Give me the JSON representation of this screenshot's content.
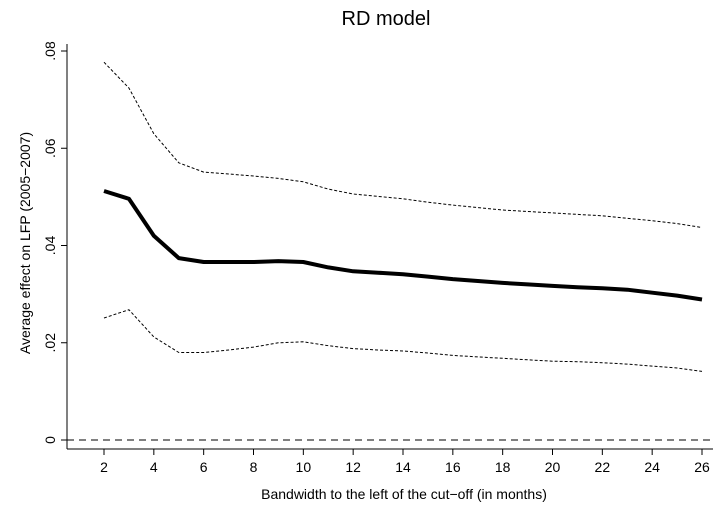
{
  "chart_data": {
    "type": "line",
    "title": "RD model",
    "xlabel": "Bandwidth to the left of the cut−off (in months)",
    "ylabel": "Average effect on LFP (2005−2007)",
    "xlim": [
      2,
      26
    ],
    "ylim": [
      0,
      0.08
    ],
    "x_ticks": [
      "2",
      "4",
      "6",
      "8",
      "10",
      "12",
      "14",
      "16",
      "18",
      "20",
      "22",
      "24",
      "26"
    ],
    "y_ticks": [
      "0",
      ".02",
      ".04",
      ".06",
      ".08"
    ],
    "grid": false,
    "legend": "none",
    "reference_line": {
      "y": 0,
      "style": "dashed"
    },
    "x": [
      2,
      3,
      4,
      5,
      6,
      7,
      8,
      9,
      10,
      11,
      12,
      13,
      14,
      15,
      16,
      17,
      18,
      19,
      20,
      21,
      22,
      23,
      24,
      25,
      26
    ],
    "series": [
      {
        "role": "estimate",
        "style": "solid-thick",
        "color": "#000000",
        "values": [
          0.0512,
          0.0496,
          0.042,
          0.0374,
          0.0366,
          0.0366,
          0.0366,
          0.0368,
          0.0366,
          0.0355,
          0.0347,
          0.0344,
          0.0341,
          0.0336,
          0.0331,
          0.0327,
          0.0323,
          0.032,
          0.0317,
          0.0314,
          0.0312,
          0.0309,
          0.0303,
          0.0297,
          0.0289
        ]
      },
      {
        "role": "upper-ci",
        "style": "dashed-thin",
        "color": "#000000",
        "values": [
          0.0777,
          0.0724,
          0.063,
          0.057,
          0.0551,
          0.0547,
          0.0543,
          0.0538,
          0.0531,
          0.0516,
          0.0506,
          0.0501,
          0.0496,
          0.0489,
          0.0483,
          0.0478,
          0.0473,
          0.047,
          0.0467,
          0.0464,
          0.0461,
          0.0456,
          0.0451,
          0.0445,
          0.0437
        ]
      },
      {
        "role": "lower-ci",
        "style": "dashed-thin",
        "color": "#000000",
        "values": [
          0.0251,
          0.0268,
          0.0212,
          0.018,
          0.018,
          0.0185,
          0.0191,
          0.02,
          0.0202,
          0.0194,
          0.0188,
          0.0185,
          0.0183,
          0.0179,
          0.0174,
          0.0171,
          0.0168,
          0.0165,
          0.0162,
          0.0161,
          0.0159,
          0.0156,
          0.0152,
          0.0148,
          0.0141
        ]
      }
    ]
  }
}
